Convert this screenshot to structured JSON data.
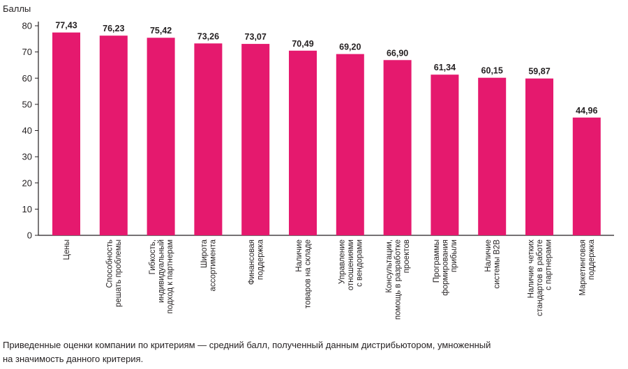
{
  "chart_data": {
    "type": "bar",
    "ylabel": "Баллы",
    "ylim": [
      0,
      80
    ],
    "yticks": [
      0,
      10,
      20,
      30,
      40,
      50,
      60,
      70,
      80
    ],
    "grid": false,
    "bar_color": "#e5196e",
    "categories": [
      [
        "Цены"
      ],
      [
        "Способность",
        "решать проблемы"
      ],
      [
        "Гибкость,",
        "индивидуальный",
        "подход к партнерам"
      ],
      [
        "Широта",
        "ассортимента"
      ],
      [
        "Финансовая",
        "поддержка"
      ],
      [
        "Наличие",
        "товаров на складе"
      ],
      [
        "Управление",
        "отношениями",
        "с вендорами"
      ],
      [
        "Консультации,",
        "помощь в разработке",
        "проектов"
      ],
      [
        "Программы",
        "формирования",
        "прибыли"
      ],
      [
        "Наличие",
        "системы B2B"
      ],
      [
        "Наличие четких",
        "стандартов в работе",
        "с партнерами"
      ],
      [
        "Маркетинговая",
        "поддержка"
      ]
    ],
    "values": [
      77.43,
      76.23,
      75.42,
      73.26,
      73.07,
      70.49,
      69.2,
      66.9,
      61.34,
      60.15,
      59.87,
      44.96
    ],
    "value_labels": [
      "77,43",
      "76,23",
      "75,42",
      "73,26",
      "73,07",
      "70,49",
      "69,20",
      "66,90",
      "61,34",
      "60,15",
      "59,87",
      "44,96"
    ]
  },
  "caption": {
    "line1": "Приведенные оценки компании по критериям — средний балл, полученный данным дистрибьютором, умноженный",
    "line2": "на значимость данного критерия."
  }
}
